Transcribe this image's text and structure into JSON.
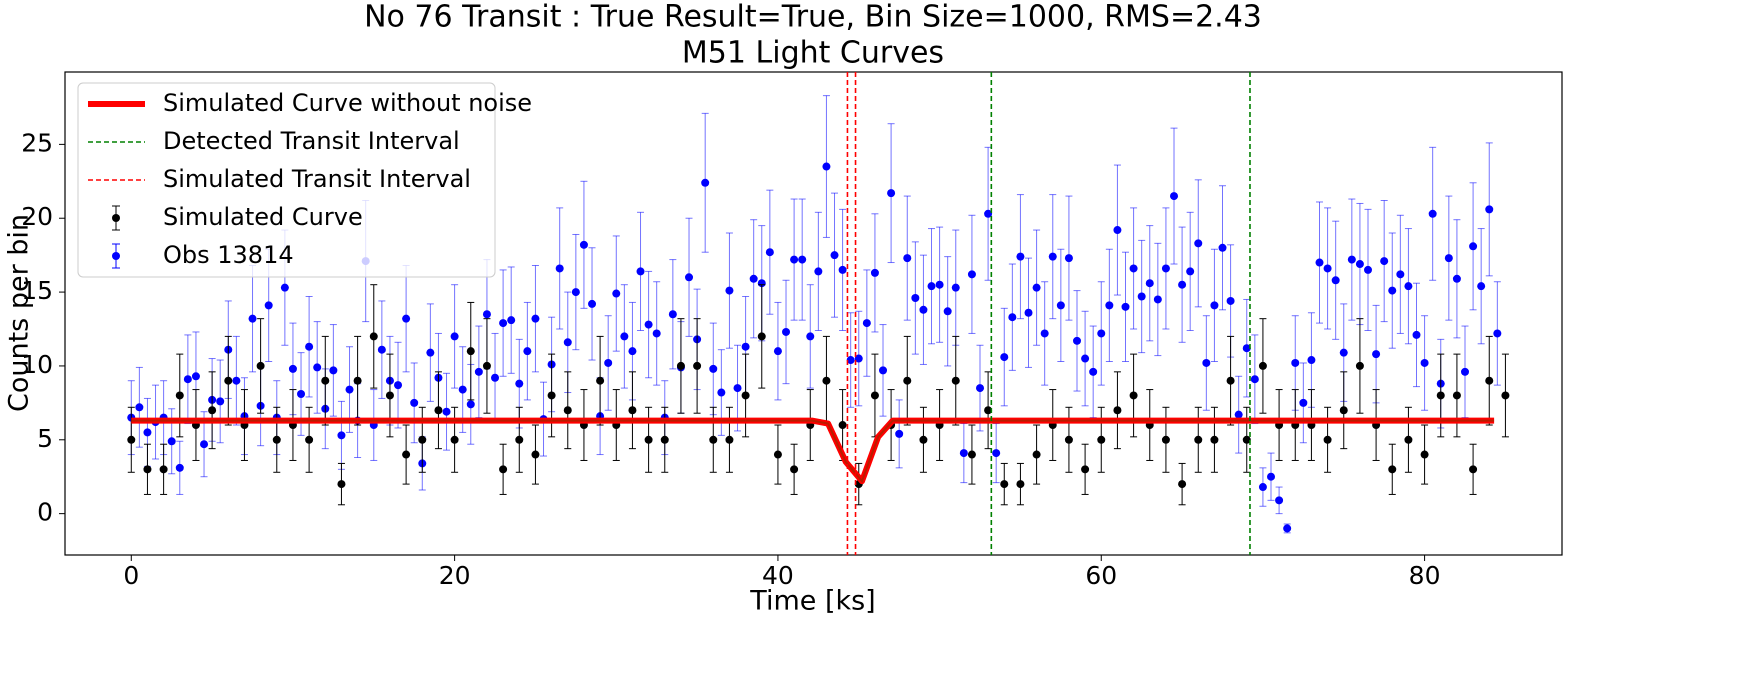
{
  "chart_data": {
    "type": "errorbar",
    "title": "No 76 Transit : True Result=True, Bin Size=1000, RMS=2.43",
    "subtitle": "M51 Light Curves",
    "x_label": "Time [ks]",
    "y_label": "Counts per bin",
    "xlim": [
      -4.1,
      88.5
    ],
    "ylim": [
      -2.8,
      29.9
    ],
    "xticks": [
      0,
      20,
      40,
      60,
      80
    ],
    "yticks": [
      0,
      5,
      10,
      15,
      20,
      25
    ],
    "legend": "upper left",
    "series": [
      {
        "name": "Obs 13814",
        "color": "#0000ff",
        "x": [
          0,
          0.5,
          1,
          1.5,
          2,
          2.5,
          3,
          3.5,
          4,
          4.5,
          5,
          5.5,
          6,
          6.5,
          7,
          7.5,
          8,
          8.5,
          9,
          9.5,
          10,
          10.5,
          11,
          11.5,
          12,
          12.5,
          13,
          13.5,
          14,
          14.5,
          15,
          15.5,
          16,
          16.5,
          17,
          17.5,
          18,
          18.5,
          19,
          19.5,
          20,
          20.5,
          21,
          21.5,
          22,
          22.5,
          23,
          23.5,
          24,
          24.5,
          25,
          25.5,
          26,
          26.5,
          27,
          27.5,
          28,
          28.5,
          29,
          29.5,
          30,
          30.5,
          31,
          31.5,
          32,
          32.5,
          33,
          33.5,
          34,
          34.5,
          35,
          35.5,
          36,
          36.5,
          37,
          37.5,
          38,
          38.5,
          39,
          39.5,
          40,
          40.5,
          41,
          41.5,
          42,
          42.5,
          43,
          43.5,
          44,
          44.5,
          45,
          45.5,
          46,
          46.5,
          47,
          47.5,
          48,
          48.5,
          49,
          49.5,
          50,
          50.5,
          51,
          51.5,
          52,
          52.5,
          53,
          53.5,
          54,
          54.5,
          55,
          55.5,
          56,
          56.5,
          57,
          57.5,
          58,
          58.5,
          59,
          59.5,
          60,
          60.5,
          61,
          61.5,
          62,
          62.5,
          63,
          63.5,
          64,
          64.5,
          65,
          65.5,
          66,
          66.5,
          67,
          67.5,
          68,
          68.5,
          69,
          69.5,
          70,
          70.5,
          71,
          71.5,
          72,
          72.5,
          73,
          73.5,
          74,
          74.5,
          75,
          75.5,
          76,
          76.5,
          77,
          77.5,
          78,
          78.5,
          79,
          79.5,
          80,
          80.5,
          81,
          81.5,
          82,
          82.5,
          83,
          83.5,
          84,
          84.5
        ],
        "values": [
          6.5,
          7.2,
          5.5,
          6.2,
          6.5,
          4.9,
          3.1,
          9.1,
          9.3,
          4.7,
          7.7,
          7.6,
          11.1,
          9.0,
          6.6,
          13.2,
          7.3,
          14.1,
          6.5,
          15.3,
          9.8,
          8.1,
          11.3,
          9.9,
          7.1,
          9.7,
          5.3,
          8.4,
          6.3,
          17.1,
          6.0,
          11.1,
          9.0,
          8.7,
          13.2,
          7.5,
          3.4,
          10.9,
          9.2,
          6.9,
          12.0,
          8.4,
          7.4,
          9.6,
          13.5,
          9.2,
          12.9,
          13.1,
          8.8,
          11.0,
          13.2,
          6.4,
          10.1,
          16.6,
          11.6,
          15.0,
          18.2,
          14.2,
          6.6,
          10.2,
          14.9,
          12.0,
          11.0,
          16.4,
          12.8,
          12.2,
          6.5,
          13.5,
          9.9,
          16.0,
          11.8,
          22.4,
          9.8,
          8.2,
          15.1,
          8.5,
          11.3,
          15.9,
          15.6,
          17.7,
          11.0,
          12.3,
          17.2,
          17.2,
          12.0,
          16.4,
          23.5,
          17.5,
          16.5,
          10.4,
          10.5,
          12.9,
          16.3,
          9.7,
          21.7,
          5.4,
          17.3,
          14.6,
          13.8,
          15.4,
          15.5,
          13.7,
          15.3,
          4.1,
          16.2,
          8.5,
          20.3,
          4.1,
          10.6,
          13.3,
          17.4,
          13.6,
          15.3,
          12.2,
          17.4,
          14.1,
          17.3,
          11.7,
          10.5,
          9.6,
          12.2,
          14.1,
          19.2,
          14.0,
          16.6,
          14.7,
          15.6,
          14.5,
          16.6,
          21.5,
          15.5,
          16.4,
          18.3,
          10.2,
          14.1,
          18.0,
          14.4,
          6.7,
          11.2,
          9.1,
          1.8,
          2.5,
          0.9,
          -1.0,
          10.2,
          7.5,
          10.4,
          17.0,
          16.6,
          15.8,
          10.9,
          17.2,
          16.9,
          16.5,
          10.8,
          17.1,
          15.1,
          16.2,
          15.4,
          12.1,
          10.2,
          20.3,
          8.8,
          17.3,
          15.9,
          9.6,
          18.1,
          15.4,
          20.6,
          12.2
        ],
        "errors": [
          2.5,
          2.7,
          2.3,
          2.5,
          2.5,
          2.2,
          1.8,
          3.0,
          3.0,
          2.2,
          2.8,
          2.8,
          3.3,
          3.0,
          2.6,
          3.6,
          2.7,
          3.8,
          2.5,
          3.9,
          3.1,
          2.8,
          3.4,
          3.1,
          2.7,
          3.1,
          2.3,
          2.9,
          2.5,
          4.1,
          2.4,
          3.3,
          3.0,
          2.9,
          3.6,
          2.7,
          1.8,
          3.3,
          3.0,
          2.6,
          3.5,
          2.9,
          2.7,
          3.1,
          3.7,
          3.0,
          3.6,
          3.6,
          3.0,
          3.3,
          3.6,
          2.5,
          3.2,
          4.1,
          3.4,
          3.9,
          4.3,
          3.8,
          2.6,
          3.2,
          3.9,
          3.5,
          3.3,
          4.0,
          3.6,
          3.5,
          2.5,
          3.7,
          3.1,
          4.0,
          3.4,
          4.7,
          3.1,
          2.9,
          3.9,
          2.9,
          3.4,
          4.0,
          3.9,
          4.2,
          3.3,
          3.5,
          4.1,
          4.1,
          3.5,
          4.0,
          4.8,
          4.2,
          4.1,
          3.2,
          3.2,
          3.6,
          4.0,
          3.1,
          4.7,
          2.3,
          4.2,
          3.8,
          3.7,
          3.9,
          3.9,
          3.7,
          3.9,
          2.0,
          4.0,
          2.9,
          4.5,
          2.0,
          3.3,
          3.6,
          4.2,
          3.7,
          3.9,
          3.5,
          4.2,
          3.8,
          4.2,
          3.4,
          3.2,
          3.1,
          3.5,
          3.8,
          4.4,
          3.7,
          4.1,
          3.8,
          3.9,
          3.8,
          4.1,
          4.6,
          3.9,
          4.0,
          4.3,
          3.2,
          3.8,
          4.2,
          3.8,
          2.6,
          3.3,
          3.0,
          1.3,
          1.6,
          0.9,
          0.3,
          3.2,
          2.7,
          3.2,
          4.1,
          4.1,
          4.0,
          3.3,
          4.1,
          4.1,
          4.1,
          3.3,
          4.1,
          3.9,
          4.0,
          3.9,
          3.5,
          3.2,
          4.5,
          3.0,
          4.2,
          4.0,
          3.1,
          4.3,
          3.9,
          4.5,
          3.5
        ]
      },
      {
        "name": "Simulated Curve",
        "color": "#000000",
        "x": [
          0,
          1,
          2,
          3,
          4,
          5,
          6,
          7,
          8,
          9,
          10,
          11,
          12,
          13,
          14,
          15,
          16,
          17,
          18,
          19,
          20,
          21,
          22,
          23,
          24,
          25,
          26,
          27,
          28,
          29,
          30,
          31,
          32,
          33,
          34,
          35,
          36,
          37,
          38,
          39,
          40,
          41,
          42,
          43,
          44,
          45,
          46,
          47,
          48,
          49,
          50,
          51,
          52,
          53,
          54,
          55,
          56,
          57,
          58,
          59,
          60,
          61,
          62,
          63,
          64,
          65,
          66,
          67,
          68,
          69,
          70,
          71,
          72,
          73,
          74,
          75,
          76,
          77,
          78,
          79,
          80,
          81,
          82,
          83,
          84,
          85
        ],
        "values": [
          5,
          3,
          3,
          8,
          6,
          7,
          9,
          6,
          10,
          5,
          6,
          5,
          9,
          2,
          9,
          12,
          8,
          4,
          5,
          7,
          5,
          11,
          10,
          3,
          5,
          4,
          8,
          7,
          6,
          9,
          6,
          7,
          5,
          5,
          10,
          10,
          5,
          5,
          8,
          12,
          4,
          3,
          6,
          9,
          6,
          2,
          8,
          6,
          9,
          5,
          6,
          9,
          4,
          7,
          2,
          2,
          4,
          6,
          5,
          3,
          5,
          7,
          8,
          6,
          5,
          2,
          5,
          5,
          9,
          5,
          10,
          6,
          6,
          6,
          5,
          7,
          10,
          6,
          3,
          5,
          4,
          8,
          8,
          3,
          9,
          8
        ],
        "errors": [
          2.2,
          1.7,
          1.7,
          2.8,
          2.4,
          2.6,
          3,
          2.4,
          3.2,
          2.2,
          2.4,
          2.2,
          3,
          1.4,
          3,
          3.5,
          2.8,
          2,
          2.2,
          2.6,
          2.2,
          3.3,
          3.2,
          1.7,
          2.2,
          2,
          2.8,
          2.6,
          2.4,
          3,
          2.4,
          2.6,
          2.2,
          2.2,
          3.2,
          3.2,
          2.2,
          2.2,
          2.8,
          3.5,
          2,
          1.7,
          2.4,
          3,
          2.4,
          1.4,
          2.8,
          2.4,
          3,
          2.2,
          2.4,
          3,
          2,
          2.6,
          1.4,
          1.4,
          2,
          2.4,
          2.2,
          1.7,
          2.2,
          2.6,
          2.8,
          2.4,
          2.2,
          1.4,
          2.2,
          2.2,
          3,
          2.2,
          3.2,
          2.4,
          2.4,
          2.4,
          2.2,
          2.6,
          3.2,
          2.4,
          1.7,
          2.2,
          2,
          2.8,
          2.8,
          1.7,
          3,
          2.8
        ]
      }
    ],
    "model": {
      "name": "Simulated Curve without noise",
      "color": "#ff0000",
      "x": [
        0,
        42.1,
        43.1,
        44.2,
        45.2,
        46.2,
        47.1,
        84.3
      ],
      "values": [
        6.3,
        6.3,
        6.1,
        3.5,
        2.2,
        5.2,
        6.3,
        6.3
      ]
    },
    "vlines": [
      {
        "name": "Detected Transit Interval",
        "color": "#008000",
        "x": [
          53.2,
          69.2
        ]
      },
      {
        "name": "Simulated Transit Interval",
        "color": "#ff0000",
        "x": [
          44.3,
          44.8
        ]
      }
    ]
  }
}
